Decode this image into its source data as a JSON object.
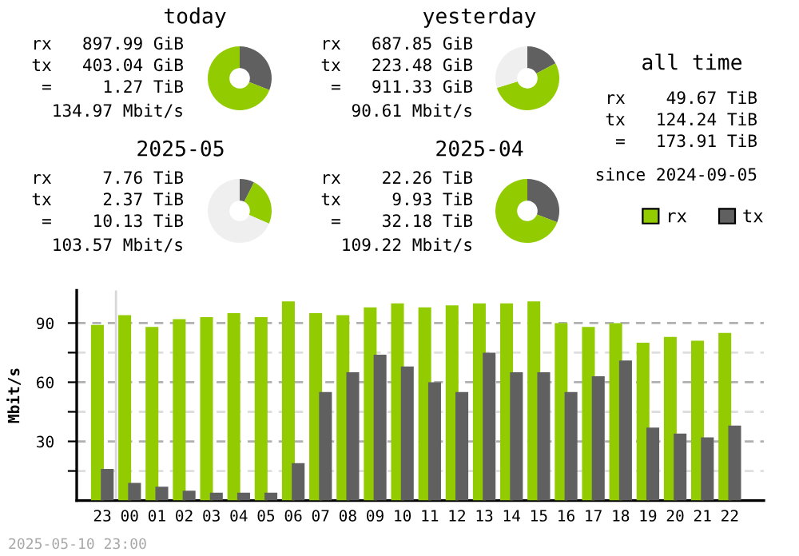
{
  "chart_data": [
    {
      "type": "donut",
      "title": "today",
      "annotations": [
        "rx   897.99 GiB",
        "tx   403.04 GiB",
        " =     1.27 TiB",
        "134.97 Mbit/s"
      ],
      "categories": [
        null,
        null
      ],
      "values": [
        31.0,
        69.0
      ],
      "colors": [
        "#606060",
        "#92cc00"
      ]
    },
    {
      "type": "donut",
      "title": "yesterday",
      "annotations": [
        "rx   687.85 GiB",
        "tx   223.48 GiB",
        " =   911.33 GiB",
        "90.61 Mbit/s"
      ],
      "categories": [
        null,
        null,
        null
      ],
      "values": [
        17.2,
        52.9,
        29.9
      ],
      "colors": [
        "#606060",
        "#92cc00",
        "#efefef"
      ]
    },
    {
      "type": "other",
      "title": "all time",
      "annotations": [
        "rx    49.67 TiB",
        "tx   124.24 TiB",
        " =   173.91 TiB",
        "since 2024-09-05"
      ]
    },
    {
      "type": "donut",
      "title": "2025-05",
      "annotations": [
        "rx     7.76 TiB",
        "tx     2.37 TiB",
        " =    10.13 TiB",
        "103.57 Mbit/s"
      ],
      "categories": [
        null,
        null,
        null
      ],
      "values": [
        7.4,
        24.1,
        68.5
      ],
      "colors": [
        "#606060",
        "#92cc00",
        "#efefef"
      ]
    },
    {
      "type": "donut",
      "title": "2025-04",
      "annotations": [
        "rx    22.26 TiB",
        "tx     9.93 TiB",
        " =    32.18 TiB",
        "109.22 Mbit/s"
      ],
      "categories": [
        null,
        null
      ],
      "values": [
        30.8,
        69.2
      ],
      "colors": [
        "#606060",
        "#92cc00"
      ]
    },
    {
      "type": "bar",
      "ylabel": "Mbit/s",
      "annotations": [
        "2025-05-10 23:00"
      ],
      "categories": [
        "23",
        "00",
        "01",
        "02",
        "03",
        "04",
        "05",
        "06",
        "07",
        "08",
        "09",
        "10",
        "11",
        "12",
        "13",
        "14",
        "15",
        "16",
        "17",
        "18",
        "19",
        "20",
        "21",
        "22"
      ],
      "series": [
        {
          "name": "rx",
          "color": "#92cc00",
          "values": [
            89,
            94,
            88,
            92,
            93,
            95,
            93,
            101,
            95,
            94,
            98,
            100,
            98,
            99,
            100,
            100,
            101,
            90,
            88,
            90,
            80,
            83,
            81,
            85
          ]
        },
        {
          "name": "tx",
          "color": "#606060",
          "values": [
            16,
            9,
            7,
            5,
            4,
            4,
            4,
            19,
            55,
            65,
            74,
            68,
            60,
            55,
            75,
            65,
            65,
            55,
            63,
            71,
            37,
            34,
            32,
            38
          ]
        }
      ],
      "ylim": [
        0,
        106.6
      ],
      "yticks": [
        {
          "value": 15,
          "label": null
        },
        30,
        {
          "value": 45,
          "label": null
        },
        60,
        {
          "value": 75,
          "label": null
        },
        90
      ],
      "grid": "y",
      "legend": "top right",
      "ref_lines": [
        {
          "axis": "x",
          "value": "00",
          "color": "#d8d8d8"
        }
      ]
    }
  ]
}
